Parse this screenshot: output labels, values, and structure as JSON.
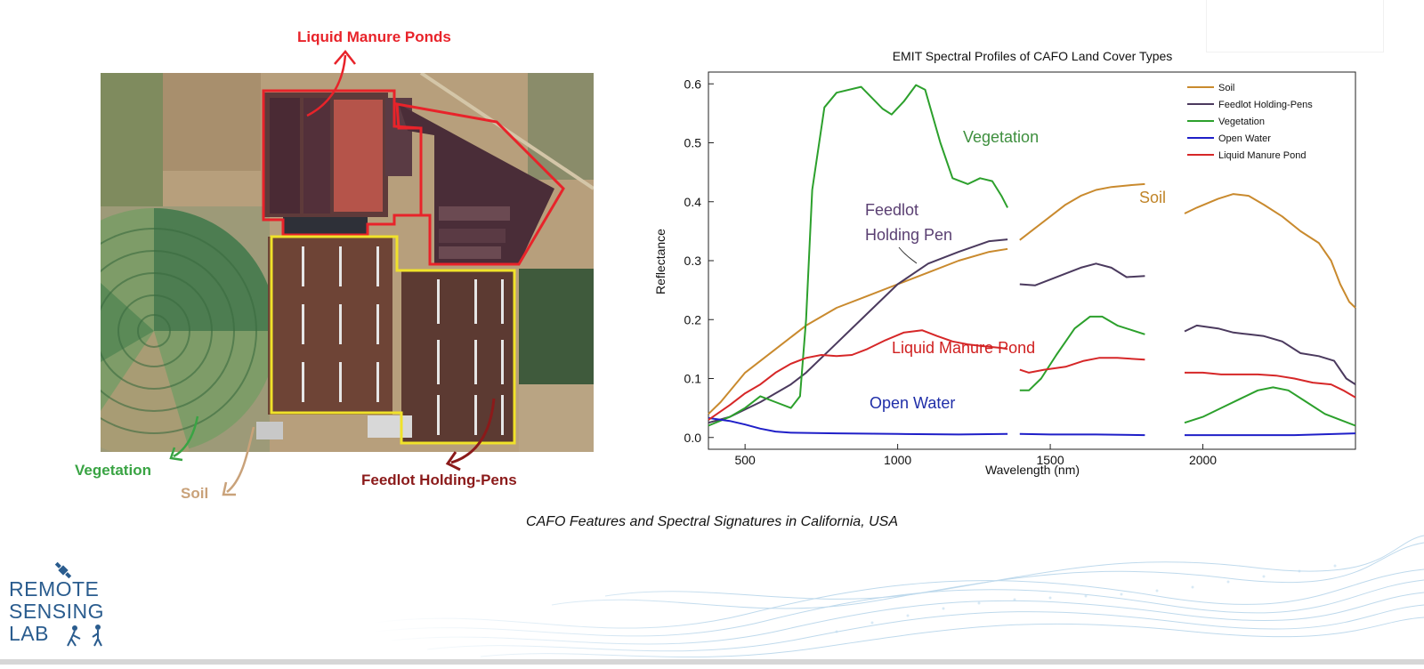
{
  "figure": {
    "caption": "CAFO Features and Spectral Signatures in California, USA"
  },
  "satellite_annotations": {
    "liquid_manure_ponds": "Liquid Manure Ponds",
    "vegetation": "Vegetation",
    "soil": "Soil",
    "feedlot_holding_pens": "Feedlot Holding-Pens"
  },
  "logo": {
    "line1": "REMOTE",
    "line2": "SENSING",
    "line3": "LAB"
  },
  "colors": {
    "soil": "#c98a2e",
    "feedlot": "#4b3a5e",
    "vegetation": "#2ca02c",
    "water": "#1f1fc8",
    "pond": "#d62728",
    "annot_red": "#e8232a",
    "annot_green": "#3aa444",
    "annot_soil": "#c9a27a",
    "annot_feedlot": "#8b1a1a",
    "annot_feedlot_text": "#5a3f72",
    "annot_veg_text": "#3e8f3e",
    "annot_water_text": "#1f2ea8",
    "annot_pond_text": "#d02020",
    "annot_soil_text": "#c08428",
    "logo_blue": "#2a5c8e"
  },
  "chart_data": {
    "type": "line",
    "title": "EMIT Spectral Profiles of CAFO Land Cover Types",
    "xlabel": "Wavelength (nm)",
    "ylabel": "Reflectance",
    "xlim": [
      380,
      2500
    ],
    "ylim": [
      -0.02,
      0.62
    ],
    "xticks": [
      500,
      1000,
      1500,
      2000
    ],
    "yticks": [
      0.0,
      0.1,
      0.2,
      0.3,
      0.4,
      0.5,
      0.6
    ],
    "legend_position": "top-right",
    "annotations": {
      "vegetation": "Vegetation",
      "soil": "Soil",
      "feedlot_line1": "Feedlot",
      "feedlot_line2": "Holding Pen",
      "pond": "Liquid Manure Pond",
      "water": "Open Water"
    },
    "series": [
      {
        "name": "Soil",
        "color": "#c98a2e",
        "segments": [
          [
            [
              380,
              0.04
            ],
            [
              420,
              0.06
            ],
            [
              500,
              0.11
            ],
            [
              600,
              0.15
            ],
            [
              700,
              0.19
            ],
            [
              800,
              0.22
            ],
            [
              900,
              0.24
            ],
            [
              1000,
              0.26
            ],
            [
              1100,
              0.28
            ],
            [
              1200,
              0.3
            ],
            [
              1300,
              0.315
            ],
            [
              1360,
              0.32
            ]
          ],
          [
            [
              1400,
              0.335
            ],
            [
              1450,
              0.355
            ],
            [
              1500,
              0.375
            ],
            [
              1550,
              0.395
            ],
            [
              1600,
              0.41
            ],
            [
              1650,
              0.42
            ],
            [
              1700,
              0.425
            ],
            [
              1760,
              0.428
            ],
            [
              1810,
              0.43
            ]
          ],
          [
            [
              1940,
              0.38
            ],
            [
              1980,
              0.39
            ],
            [
              2050,
              0.405
            ],
            [
              2100,
              0.413
            ],
            [
              2150,
              0.41
            ],
            [
              2200,
              0.395
            ],
            [
              2260,
              0.375
            ],
            [
              2320,
              0.35
            ],
            [
              2380,
              0.33
            ],
            [
              2420,
              0.3
            ],
            [
              2450,
              0.26
            ],
            [
              2480,
              0.23
            ],
            [
              2500,
              0.22
            ]
          ]
        ]
      },
      {
        "name": "Feedlot Holding-Pens",
        "color": "#4b3a5e",
        "segments": [
          [
            [
              380,
              0.025
            ],
            [
              450,
              0.035
            ],
            [
              550,
              0.06
            ],
            [
              650,
              0.09
            ],
            [
              700,
              0.11
            ],
            [
              800,
              0.16
            ],
            [
              900,
              0.21
            ],
            [
              1000,
              0.26
            ],
            [
              1100,
              0.295
            ],
            [
              1200,
              0.315
            ],
            [
              1300,
              0.333
            ],
            [
              1360,
              0.336
            ]
          ],
          [
            [
              1400,
              0.26
            ],
            [
              1450,
              0.258
            ],
            [
              1500,
              0.268
            ],
            [
              1550,
              0.278
            ],
            [
              1600,
              0.288
            ],
            [
              1650,
              0.295
            ],
            [
              1700,
              0.288
            ],
            [
              1750,
              0.272
            ],
            [
              1810,
              0.274
            ]
          ],
          [
            [
              1940,
              0.18
            ],
            [
              1980,
              0.19
            ],
            [
              2050,
              0.185
            ],
            [
              2100,
              0.178
            ],
            [
              2150,
              0.175
            ],
            [
              2200,
              0.172
            ],
            [
              2260,
              0.163
            ],
            [
              2320,
              0.143
            ],
            [
              2380,
              0.138
            ],
            [
              2430,
              0.13
            ],
            [
              2470,
              0.1
            ],
            [
              2500,
              0.09
            ]
          ]
        ]
      },
      {
        "name": "Vegetation",
        "color": "#2ca02c",
        "segments": [
          [
            [
              380,
              0.02
            ],
            [
              450,
              0.035
            ],
            [
              500,
              0.05
            ],
            [
              550,
              0.07
            ],
            [
              600,
              0.06
            ],
            [
              650,
              0.05
            ],
            [
              680,
              0.07
            ],
            [
              700,
              0.2
            ],
            [
              720,
              0.42
            ],
            [
              760,
              0.56
            ],
            [
              800,
              0.585
            ],
            [
              880,
              0.595
            ],
            [
              950,
              0.558
            ],
            [
              980,
              0.548
            ],
            [
              1020,
              0.57
            ],
            [
              1060,
              0.598
            ],
            [
              1090,
              0.59
            ],
            [
              1140,
              0.5
            ],
            [
              1180,
              0.44
            ],
            [
              1230,
              0.43
            ],
            [
              1270,
              0.44
            ],
            [
              1310,
              0.435
            ],
            [
              1340,
              0.41
            ],
            [
              1360,
              0.39
            ]
          ],
          [
            [
              1400,
              0.08
            ],
            [
              1430,
              0.08
            ],
            [
              1470,
              0.1
            ],
            [
              1520,
              0.14
            ],
            [
              1580,
              0.185
            ],
            [
              1630,
              0.205
            ],
            [
              1670,
              0.205
            ],
            [
              1720,
              0.19
            ],
            [
              1810,
              0.175
            ]
          ],
          [
            [
              1940,
              0.025
            ],
            [
              2000,
              0.035
            ],
            [
              2060,
              0.05
            ],
            [
              2120,
              0.065
            ],
            [
              2180,
              0.08
            ],
            [
              2230,
              0.085
            ],
            [
              2280,
              0.08
            ],
            [
              2340,
              0.06
            ],
            [
              2400,
              0.04
            ],
            [
              2450,
              0.03
            ],
            [
              2500,
              0.02
            ]
          ]
        ]
      },
      {
        "name": "Open Water",
        "color": "#1f1fc8",
        "segments": [
          [
            [
              380,
              0.033
            ],
            [
              450,
              0.028
            ],
            [
              500,
              0.022
            ],
            [
              550,
              0.015
            ],
            [
              600,
              0.01
            ],
            [
              650,
              0.008
            ],
            [
              800,
              0.007
            ],
            [
              1000,
              0.006
            ],
            [
              1200,
              0.005
            ],
            [
              1360,
              0.006
            ]
          ],
          [
            [
              1400,
              0.006
            ],
            [
              1500,
              0.005
            ],
            [
              1650,
              0.005
            ],
            [
              1810,
              0.004
            ]
          ],
          [
            [
              1940,
              0.004
            ],
            [
              2100,
              0.004
            ],
            [
              2300,
              0.004
            ],
            [
              2500,
              0.007
            ]
          ]
        ]
      },
      {
        "name": "Liquid Manure Pond",
        "color": "#d62728",
        "segments": [
          [
            [
              380,
              0.03
            ],
            [
              450,
              0.055
            ],
            [
              500,
              0.075
            ],
            [
              550,
              0.09
            ],
            [
              600,
              0.11
            ],
            [
              650,
              0.125
            ],
            [
              700,
              0.135
            ],
            [
              750,
              0.14
            ],
            [
              800,
              0.138
            ],
            [
              850,
              0.14
            ],
            [
              900,
              0.15
            ],
            [
              960,
              0.165
            ],
            [
              1020,
              0.178
            ],
            [
              1080,
              0.182
            ],
            [
              1130,
              0.172
            ],
            [
              1180,
              0.163
            ],
            [
              1230,
              0.158
            ],
            [
              1280,
              0.155
            ],
            [
              1340,
              0.152
            ],
            [
              1360,
              0.15
            ]
          ],
          [
            [
              1400,
              0.115
            ],
            [
              1430,
              0.11
            ],
            [
              1480,
              0.115
            ],
            [
              1550,
              0.12
            ],
            [
              1610,
              0.13
            ],
            [
              1660,
              0.135
            ],
            [
              1720,
              0.135
            ],
            [
              1810,
              0.132
            ]
          ],
          [
            [
              1940,
              0.11
            ],
            [
              2000,
              0.11
            ],
            [
              2060,
              0.107
            ],
            [
              2120,
              0.107
            ],
            [
              2180,
              0.107
            ],
            [
              2240,
              0.105
            ],
            [
              2300,
              0.1
            ],
            [
              2360,
              0.093
            ],
            [
              2420,
              0.09
            ],
            [
              2460,
              0.08
            ],
            [
              2500,
              0.068
            ]
          ]
        ]
      }
    ]
  }
}
